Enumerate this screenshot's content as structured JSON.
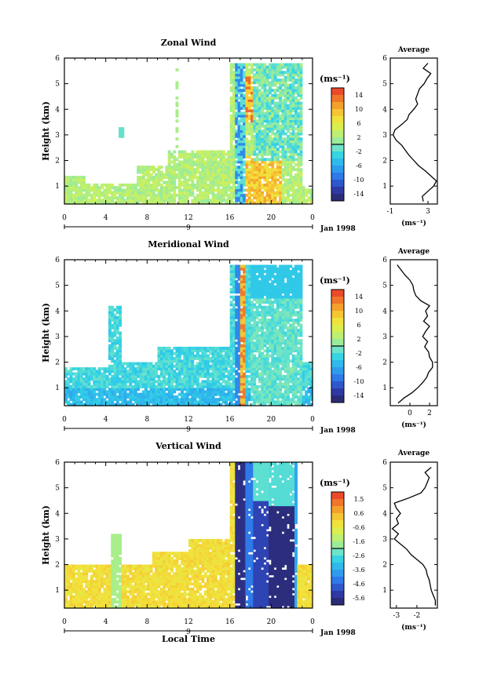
{
  "chart_data": [
    {
      "type": "heatmap",
      "title": "Zonal Wind",
      "ylabel": "Height (km)",
      "xlim": [
        0,
        24
      ],
      "ylim": [
        0.3,
        6
      ],
      "x_ticks": [
        "0",
        "4",
        "8",
        "12",
        "16",
        "20",
        "0"
      ],
      "y_ticks": [
        "1",
        "2",
        "3",
        "4",
        "5",
        "6"
      ],
      "day_label": "9",
      "date_label": "Jan 1998",
      "colorbar_unit": "(ms⁻¹)",
      "colorbar_ticks": [
        "14",
        "10",
        "6",
        "2",
        "-2",
        "-6",
        "-10",
        "-14"
      ],
      "colorbar_range": [
        -16,
        16
      ],
      "contour_level": 0,
      "average_profile": {
        "title": "Average",
        "xlabel": "(ms⁻¹)",
        "x_ticks": [
          "-1",
          "3"
        ],
        "xlim": [
          -1,
          4
        ],
        "y_ticks": [
          "1",
          "2",
          "3",
          "4",
          "5",
          "6"
        ],
        "ylim": [
          0.3,
          6
        ],
        "height": [
          0.4,
          0.6,
          0.8,
          1.0,
          1.2,
          1.4,
          1.6,
          1.8,
          2.0,
          2.2,
          2.4,
          2.6,
          2.8,
          3.0,
          3.2,
          3.4,
          3.6,
          3.8,
          4.0,
          4.2,
          4.4,
          4.6,
          4.8,
          5.0,
          5.2,
          5.4,
          5.6,
          5.8
        ],
        "wind": [
          2.5,
          2.4,
          3.0,
          3.6,
          3.9,
          3.3,
          2.7,
          2.0,
          1.5,
          1.0,
          0.6,
          0.2,
          -0.4,
          -0.7,
          -0.5,
          0.2,
          0.8,
          1.0,
          1.5,
          1.9,
          1.7,
          1.9,
          2.1,
          2.6,
          2.9,
          3.3,
          2.5,
          3.0
        ]
      }
    },
    {
      "type": "heatmap",
      "title": "Meridional Wind",
      "ylabel": "Height (km)",
      "xlim": [
        0,
        24
      ],
      "ylim": [
        0.3,
        6
      ],
      "x_ticks": [
        "0",
        "4",
        "8",
        "12",
        "16",
        "20",
        "0"
      ],
      "y_ticks": [
        "1",
        "2",
        "3",
        "4",
        "5",
        "6"
      ],
      "day_label": "9",
      "date_label": "Jan 1998",
      "colorbar_unit": "(ms⁻¹)",
      "colorbar_ticks": [
        "14",
        "10",
        "6",
        "2",
        "-2",
        "-6",
        "-10",
        "-14"
      ],
      "colorbar_range": [
        -16,
        16
      ],
      "contour_level": 0,
      "average_profile": {
        "title": "Average",
        "xlabel": "(ms⁻¹)",
        "x_ticks": [
          "0",
          "2"
        ],
        "xlim": [
          -2,
          2.8
        ],
        "y_ticks": [
          "1",
          "2",
          "3",
          "4",
          "5",
          "6"
        ],
        "ylim": [
          0.3,
          6
        ],
        "height": [
          0.4,
          0.6,
          0.8,
          1.0,
          1.2,
          1.4,
          1.6,
          1.8,
          2.0,
          2.2,
          2.4,
          2.6,
          2.8,
          3.0,
          3.2,
          3.4,
          3.6,
          3.8,
          4.0,
          4.2,
          4.4,
          4.6,
          4.8,
          5.0,
          5.2,
          5.4,
          5.6,
          5.8
        ],
        "wind": [
          -1.2,
          -0.6,
          0.2,
          0.8,
          1.3,
          1.7,
          1.9,
          2.3,
          2.3,
          2.0,
          1.9,
          1.5,
          1.8,
          1.3,
          1.6,
          2.0,
          1.4,
          1.8,
          1.6,
          2.0,
          1.1,
          0.6,
          0.4,
          0.3,
          0.0,
          -0.5,
          -0.9,
          -1.3
        ]
      }
    },
    {
      "type": "heatmap",
      "title": "Vertical Wind",
      "ylabel": "Height (km)",
      "xlabel": "Local Time",
      "xlim": [
        0,
        24
      ],
      "ylim": [
        0.3,
        6
      ],
      "x_ticks": [
        "0",
        "4",
        "8",
        "12",
        "16",
        "20",
        "0"
      ],
      "y_ticks": [
        "1",
        "2",
        "3",
        "4",
        "5",
        "6"
      ],
      "day_label": "9",
      "date_label": "Jan 1998",
      "colorbar_unit": "(ms⁻¹)",
      "colorbar_ticks": [
        "1.5",
        "0.6",
        "-0.6",
        "-1.6",
        "-2.6",
        "-3.6",
        "-4.6",
        "-5.6"
      ],
      "colorbar_range": [
        -6.1,
        2.0
      ],
      "average_profile": {
        "title": "Average",
        "xlabel": "(ms⁻¹)",
        "x_ticks": [
          "-3",
          "-2"
        ],
        "xlim": [
          -3.3,
          -1.0
        ],
        "y_ticks": [
          "1",
          "2",
          "3",
          "4",
          "5",
          "6"
        ],
        "ylim": [
          0.3,
          6
        ],
        "height": [
          0.4,
          0.6,
          0.8,
          1.0,
          1.2,
          1.4,
          1.6,
          1.8,
          2.0,
          2.2,
          2.4,
          2.6,
          2.8,
          3.0,
          3.2,
          3.4,
          3.6,
          3.8,
          4.0,
          4.2,
          4.4,
          4.6,
          4.8,
          5.0,
          5.2,
          5.4,
          5.6,
          5.8
        ],
        "wind": [
          -1.1,
          -1.1,
          -1.2,
          -1.3,
          -1.35,
          -1.4,
          -1.5,
          -1.55,
          -1.7,
          -2.0,
          -2.3,
          -2.5,
          -2.8,
          -3.1,
          -2.9,
          -3.2,
          -2.9,
          -3.0,
          -2.8,
          -3.0,
          -3.1,
          -2.4,
          -1.8,
          -1.6,
          -1.5,
          -1.4,
          -1.6,
          -1.3
        ]
      }
    }
  ]
}
